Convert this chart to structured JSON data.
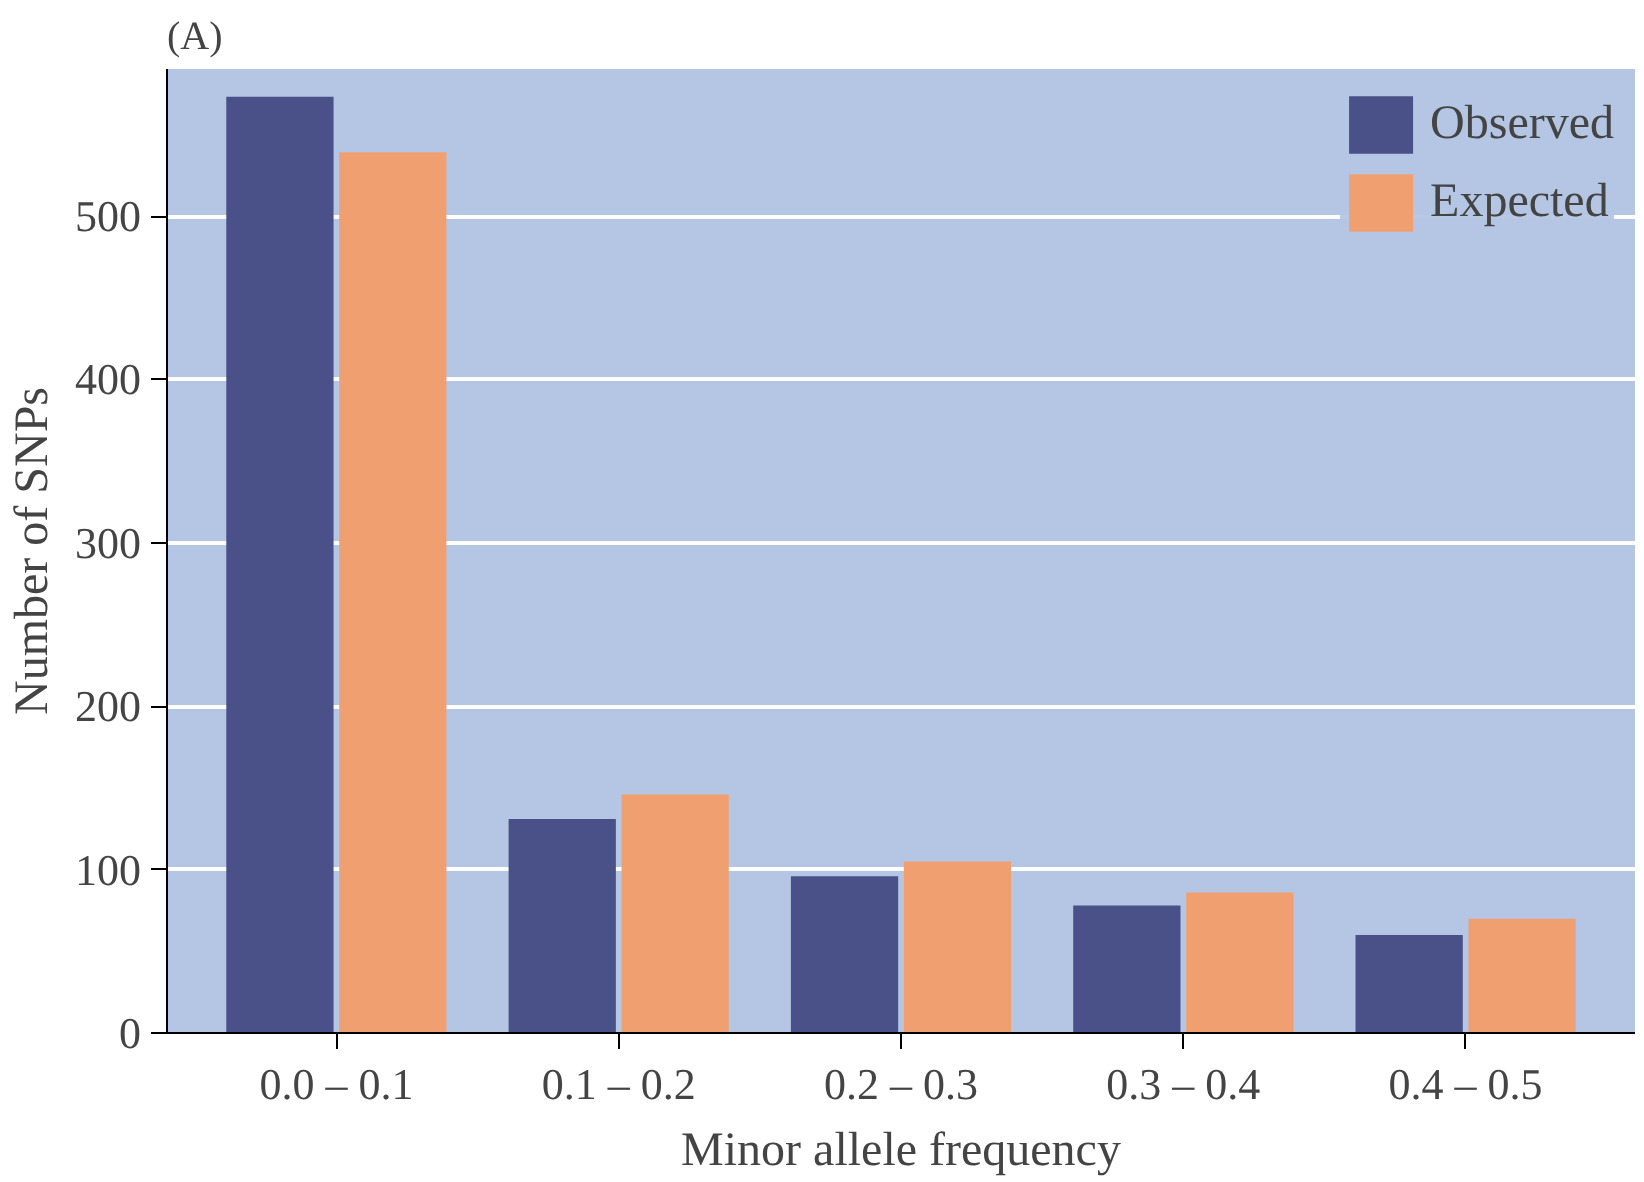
{
  "chart_data": {
    "type": "bar",
    "xlabel": "Minor allele frequency",
    "ylabel": "Number of SNPs",
    "annotations": [
      "(A)"
    ],
    "categories": [
      "0.0 – 0.1",
      "0.1 – 0.2",
      "0.2 – 0.3",
      "0.3 – 0.4",
      "0.4 – 0.5"
    ],
    "series": [
      {
        "name": "Observed",
        "color": "#4a5088",
        "values": [
          573,
          131,
          96,
          78,
          60
        ]
      },
      {
        "name": "Expected",
        "color": "#f0a070",
        "values": [
          539,
          146,
          105,
          86,
          70
        ]
      }
    ],
    "ylim": [
      0,
      590
    ],
    "yticks": [
      0,
      100,
      200,
      300,
      400,
      500
    ],
    "grid": "y",
    "legend": "top right"
  }
}
